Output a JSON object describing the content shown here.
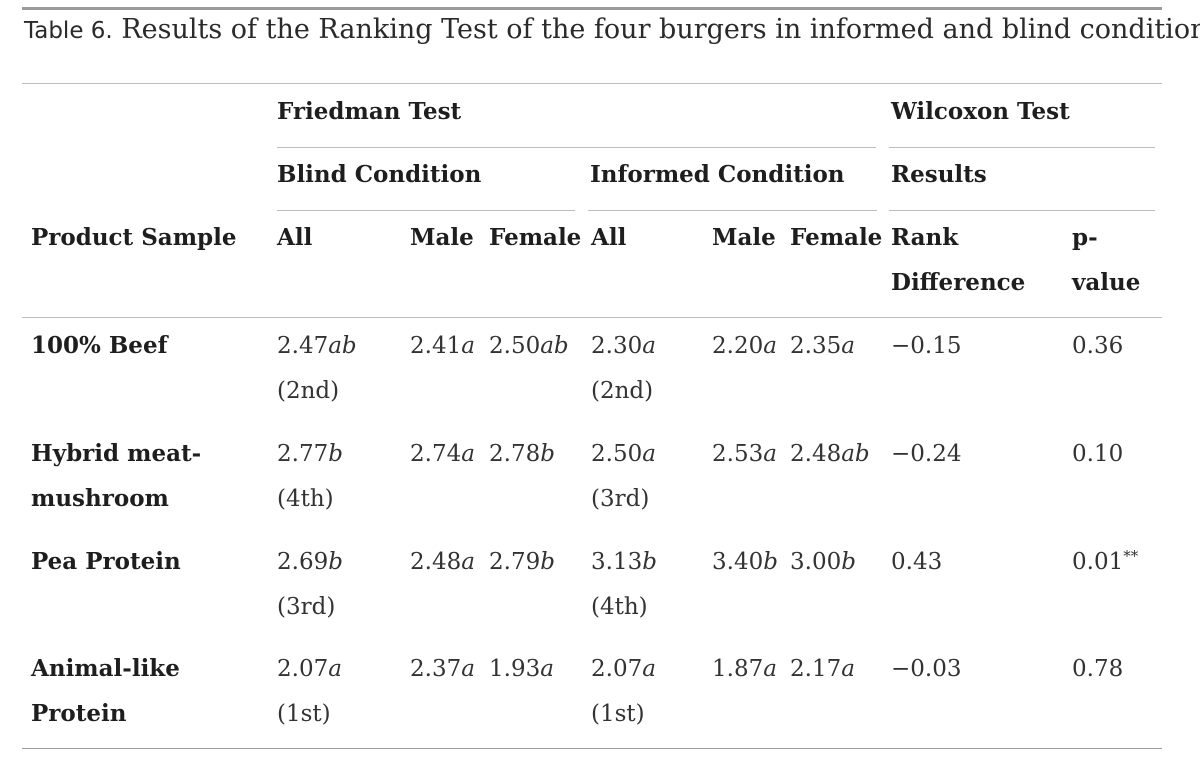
{
  "caption": {
    "label": "Table 6.",
    "text": "Results of the Ranking Test of the four burgers in informed and blind conditions."
  },
  "headers": {
    "friedman": "Friedman Test",
    "wilcoxon": "Wilcoxon Test",
    "blind": "Blind Condition",
    "informed": "Informed Condition",
    "results": "Results",
    "product_sample": "Product Sample",
    "blind_all": "All",
    "blind_male": "Male",
    "blind_female": "Female",
    "inf_all": "All",
    "inf_male": "Male",
    "inf_female": "Female",
    "rank_diff_1": "Rank",
    "rank_diff_2": "Difference",
    "pvalue_1": "p-",
    "pvalue_2": "value"
  },
  "rows": [
    {
      "label_1": "100% Beef",
      "label_2": "",
      "blind_all": {
        "v": "2.47",
        "l": "ab"
      },
      "blind_all_rank": "(2nd)",
      "blind_male": {
        "v": "2.41",
        "l": "a"
      },
      "blind_female": {
        "v": "2.50",
        "l": "ab"
      },
      "inf_all": {
        "v": "2.30",
        "l": "a"
      },
      "inf_all_rank": "(2nd)",
      "inf_male": {
        "v": "2.20",
        "l": "a"
      },
      "inf_female": {
        "v": "2.35",
        "l": "a"
      },
      "rank_diff": "−0.15",
      "pvalue": "0.36",
      "pvalue_sig": ""
    },
    {
      "label_1": "Hybrid meat-",
      "label_2": "mushroom",
      "blind_all": {
        "v": "2.77",
        "l": "b"
      },
      "blind_all_rank": "(4th)",
      "blind_male": {
        "v": "2.74",
        "l": "a"
      },
      "blind_female": {
        "v": "2.78",
        "l": "b"
      },
      "inf_all": {
        "v": "2.50",
        "l": "a"
      },
      "inf_all_rank": "(3rd)",
      "inf_male": {
        "v": "2.53",
        "l": "a"
      },
      "inf_female": {
        "v": "2.48",
        "l": "ab"
      },
      "rank_diff": "−0.24",
      "pvalue": "0.10",
      "pvalue_sig": ""
    },
    {
      "label_1": "Pea Protein",
      "label_2": "",
      "blind_all": {
        "v": "2.69",
        "l": "b"
      },
      "blind_all_rank": "(3rd)",
      "blind_male": {
        "v": "2.48",
        "l": "a"
      },
      "blind_female": {
        "v": "2.79",
        "l": "b"
      },
      "inf_all": {
        "v": "3.13",
        "l": "b"
      },
      "inf_all_rank": "(4th)",
      "inf_male": {
        "v": "3.40",
        "l": "b"
      },
      "inf_female": {
        "v": "3.00",
        "l": "b"
      },
      "rank_diff": "0.43",
      "pvalue": "0.01",
      "pvalue_sig": "**"
    },
    {
      "label_1": "Animal-like",
      "label_2": "Protein",
      "blind_all": {
        "v": "2.07",
        "l": "a"
      },
      "blind_all_rank": "(1st)",
      "blind_male": {
        "v": "2.37",
        "l": "a"
      },
      "blind_female": {
        "v": "1.93",
        "l": "a"
      },
      "inf_all": {
        "v": "2.07",
        "l": "a"
      },
      "inf_all_rank": "(1st)",
      "inf_male": {
        "v": "1.87",
        "l": "a"
      },
      "inf_female": {
        "v": "2.17",
        "l": "a"
      },
      "rank_diff": "−0.03",
      "pvalue": "0.78",
      "pvalue_sig": ""
    }
  ]
}
